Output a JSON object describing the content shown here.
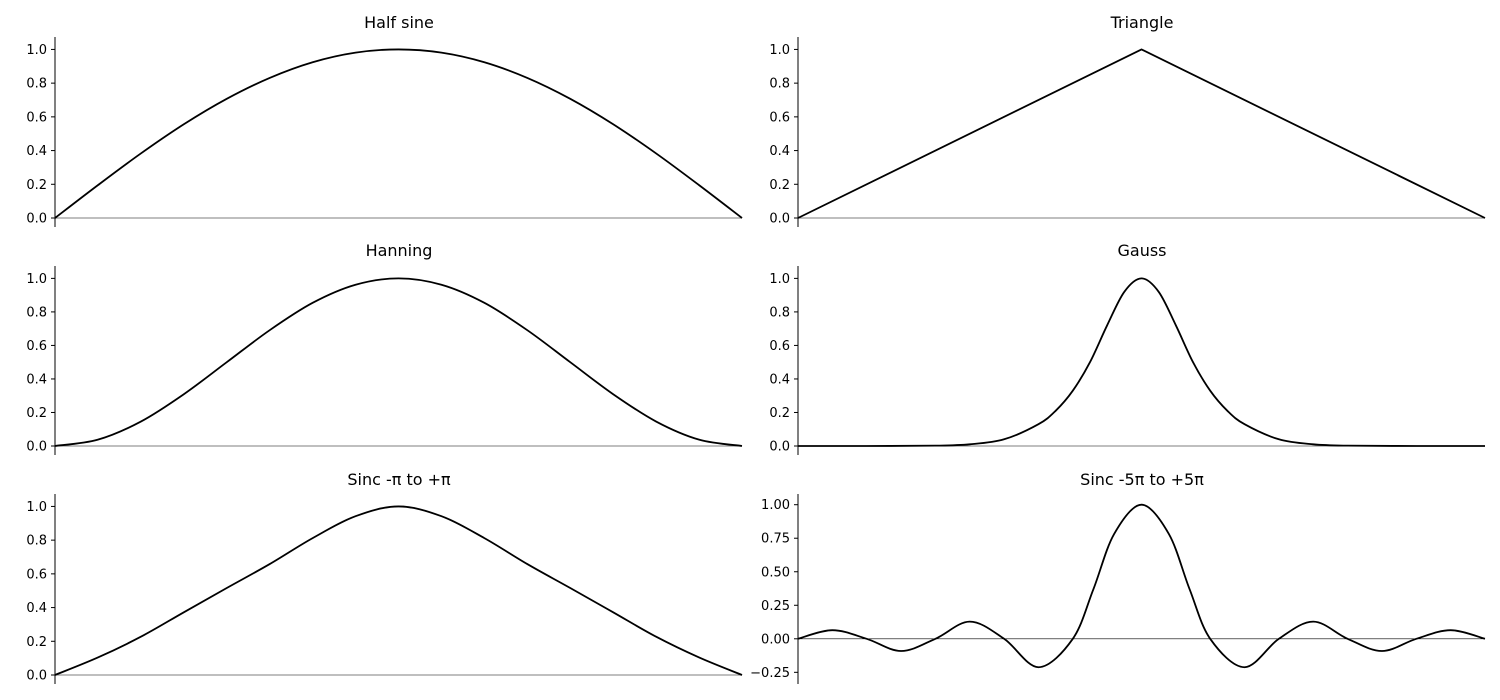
{
  "chart_data": [
    {
      "type": "line",
      "title": "Half sine",
      "xlabel": "",
      "ylabel": "",
      "grid": false,
      "x_ticks_shown": false,
      "ylim": [
        0,
        1.05
      ],
      "yticks": [
        0,
        0.2,
        0.4,
        0.6,
        0.8,
        1.0
      ],
      "yticklabels": [
        "0.0",
        "0.2",
        "0.4",
        "0.6",
        "0.8",
        "1.0"
      ],
      "x": [
        0,
        0.0625,
        0.125,
        0.1875,
        0.25,
        0.3125,
        0.375,
        0.4375,
        0.5,
        0.5625,
        0.625,
        0.6875,
        0.75,
        0.8125,
        0.875,
        0.9375,
        1
      ],
      "series": [
        {
          "values": [
            0,
            0.195,
            0.383,
            0.556,
            0.707,
            0.831,
            0.924,
            0.981,
            1.0,
            0.981,
            0.924,
            0.831,
            0.707,
            0.556,
            0.383,
            0.195,
            0
          ]
        }
      ]
    },
    {
      "type": "line",
      "title": "Triangle",
      "xlabel": "",
      "ylabel": "",
      "grid": false,
      "x_ticks_shown": false,
      "ylim": [
        0,
        1.05
      ],
      "yticks": [
        0,
        0.2,
        0.4,
        0.6,
        0.8,
        1.0
      ],
      "yticklabels": [
        "0.0",
        "0.2",
        "0.4",
        "0.6",
        "0.8",
        "1.0"
      ],
      "x": [
        0,
        0.5,
        1
      ],
      "series": [
        {
          "values": [
            0,
            1.0,
            0
          ]
        }
      ]
    },
    {
      "type": "line",
      "title": "Hanning",
      "xlabel": "",
      "ylabel": "",
      "grid": false,
      "x_ticks_shown": false,
      "ylim": [
        0,
        1.05
      ],
      "yticks": [
        0,
        0.2,
        0.4,
        0.6,
        0.8,
        1.0
      ],
      "yticklabels": [
        "0.0",
        "0.2",
        "0.4",
        "0.6",
        "0.8",
        "1.0"
      ],
      "x": [
        0,
        0.0625,
        0.125,
        0.1875,
        0.25,
        0.3125,
        0.375,
        0.4375,
        0.5,
        0.5625,
        0.625,
        0.6875,
        0.75,
        0.8125,
        0.875,
        0.9375,
        1
      ],
      "series": [
        {
          "values": [
            0,
            0.038,
            0.146,
            0.309,
            0.5,
            0.691,
            0.854,
            0.962,
            1.0,
            0.962,
            0.854,
            0.691,
            0.5,
            0.309,
            0.146,
            0.038,
            0
          ]
        }
      ]
    },
    {
      "type": "line",
      "title": "Gauss",
      "xlabel": "",
      "ylabel": "",
      "grid": false,
      "x_ticks_shown": false,
      "ylim": [
        0,
        1.05
      ],
      "yticks": [
        0,
        0.2,
        0.4,
        0.6,
        0.8,
        1.0
      ],
      "yticklabels": [
        "0.0",
        "0.2",
        "0.4",
        "0.6",
        "0.8",
        "1.0"
      ],
      "x": [
        0,
        0.1,
        0.2,
        0.25,
        0.3,
        0.35,
        0.375,
        0.4,
        0.425,
        0.45,
        0.475,
        0.5,
        0.525,
        0.55,
        0.575,
        0.6,
        0.625,
        0.65,
        0.7,
        0.75,
        0.8,
        0.9,
        1
      ],
      "series": [
        {
          "values": [
            0,
            0,
            0.002,
            0.01,
            0.04,
            0.13,
            0.21,
            0.33,
            0.5,
            0.72,
            0.92,
            1.0,
            0.92,
            0.72,
            0.5,
            0.33,
            0.21,
            0.13,
            0.04,
            0.01,
            0.002,
            0,
            0
          ]
        }
      ]
    },
    {
      "type": "line",
      "title": "Sinc -π to +π",
      "xlabel": "",
      "ylabel": "",
      "grid": false,
      "x_ticks_shown": false,
      "ylim": [
        0,
        1.05
      ],
      "yticks": [
        0,
        0.2,
        0.4,
        0.6,
        0.8,
        1.0
      ],
      "yticklabels": [
        "0.0",
        "0.2",
        "0.4",
        "0.6",
        "0.8",
        "1.0"
      ],
      "x": [
        0,
        0.0625,
        0.125,
        0.1875,
        0.25,
        0.3125,
        0.375,
        0.4375,
        0.5,
        0.5625,
        0.625,
        0.6875,
        0.75,
        0.8125,
        0.875,
        0.9375,
        1
      ],
      "series": [
        {
          "values": [
            0,
            0.104,
            0.227,
            0.372,
            0.516,
            0.658,
            0.812,
            0.942,
            1.0,
            0.942,
            0.812,
            0.658,
            0.516,
            0.372,
            0.227,
            0.104,
            0
          ]
        }
      ]
    },
    {
      "type": "line",
      "title": "Sinc -5π to +5π",
      "xlabel": "",
      "ylabel": "",
      "grid": false,
      "x_ticks_shown": false,
      "ylim": [
        -0.27,
        1.05
      ],
      "yticks": [
        -0.25,
        0,
        0.25,
        0.5,
        0.75,
        1.0
      ],
      "yticklabels": [
        "−0.25",
        "0.00",
        "0.25",
        "0.50",
        "0.75",
        "1.00"
      ],
      "x": [
        0,
        0.05,
        0.1,
        0.15,
        0.2,
        0.25,
        0.3,
        0.35,
        0.4,
        0.43,
        0.46,
        0.5,
        0.54,
        0.57,
        0.6,
        0.65,
        0.7,
        0.75,
        0.8,
        0.85,
        0.9,
        0.95,
        1
      ],
      "series": [
        {
          "values": [
            0,
            0.064,
            0,
            -0.091,
            0,
            0.128,
            0,
            -0.212,
            0,
            0.37,
            0.78,
            1.0,
            0.78,
            0.37,
            0,
            -0.212,
            0,
            0.128,
            0,
            -0.091,
            0,
            0.064,
            0
          ]
        }
      ]
    }
  ]
}
